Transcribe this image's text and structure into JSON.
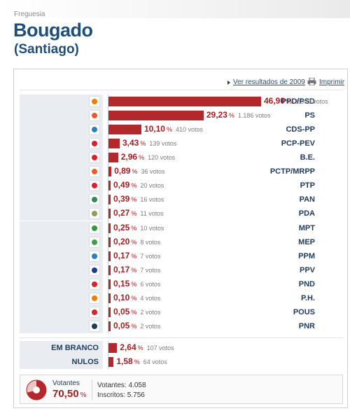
{
  "header": {
    "freguesia_label": "Freguesia",
    "title": "Bougado",
    "subtitle": "(Santiago)"
  },
  "toolbar": {
    "results_link": "Ver resultados de 2009",
    "print_link": "Imprimir"
  },
  "colors": {
    "bar": "#b3282d",
    "percent": "#a41e22",
    "label": "#1f3a5c",
    "title": "#1f4e79"
  },
  "parties": [
    {
      "name": "PPD/PSD",
      "pct": "46,90",
      "pct_value": 46.9,
      "votes": "1.903 votos",
      "logo_color": "#f07d00",
      "icon": "psd-logo-icon"
    },
    {
      "name": "PS",
      "pct": "29,23",
      "pct_value": 29.23,
      "votes": "1.186 votos",
      "logo_color": "#e85b2a",
      "icon": "ps-logo-icon"
    },
    {
      "name": "CDS-PP",
      "pct": "10,10",
      "pct_value": 10.1,
      "votes": "410 votos",
      "logo_color": "#2a7fc1",
      "icon": "cds-logo-icon"
    },
    {
      "name": "PCP-PEV",
      "pct": "3,43",
      "pct_value": 3.43,
      "votes": "139 votos",
      "logo_color": "#d8232a",
      "icon": "pcp-pev-logo-icon"
    },
    {
      "name": "B.E.",
      "pct": "2,96",
      "pct_value": 2.96,
      "votes": "120 votos",
      "logo_color": "#d8232a",
      "icon": "be-logo-icon"
    },
    {
      "name": "PCTP/MRPP",
      "pct": "0,89",
      "pct_value": 0.89,
      "votes": "36 votos",
      "logo_color": "#e85b2a",
      "icon": "pctp-logo-icon"
    },
    {
      "name": "PTP",
      "pct": "0,49",
      "pct_value": 0.49,
      "votes": "20 votos",
      "logo_color": "#d8232a",
      "icon": "ptp-logo-icon"
    },
    {
      "name": "PAN",
      "pct": "0,39",
      "pct_value": 0.39,
      "votes": "16 votos",
      "logo_color": "#2e8b57",
      "icon": "pan-logo-icon"
    },
    {
      "name": "PDA",
      "pct": "0,27",
      "pct_value": 0.27,
      "votes": "11 votos",
      "logo_color": "#8aa05a",
      "icon": "pda-logo-icon"
    },
    {
      "name": "MPT",
      "pct": "0,25",
      "pct_value": 0.25,
      "votes": "10 votos",
      "logo_color": "#2e9b3b",
      "icon": "mpt-logo-icon"
    },
    {
      "name": "MEP",
      "pct": "0,20",
      "pct_value": 0.2,
      "votes": "8 votos",
      "logo_color": "#3aa14a",
      "icon": "mep-logo-icon"
    },
    {
      "name": "PPM",
      "pct": "0,17",
      "pct_value": 0.17,
      "votes": "7 votos",
      "logo_color": "#2a7fc1",
      "icon": "ppm-logo-icon"
    },
    {
      "name": "PPV",
      "pct": "0,17",
      "pct_value": 0.17,
      "votes": "7 votos",
      "logo_color": "#1f3a8c",
      "icon": "ppv-logo-icon"
    },
    {
      "name": "PND",
      "pct": "0,15",
      "pct_value": 0.15,
      "votes": "6 votos",
      "logo_color": "#d8232a",
      "icon": "pnd-logo-icon"
    },
    {
      "name": "P.H.",
      "pct": "0,10",
      "pct_value": 0.1,
      "votes": "4 votos",
      "logo_color": "#f07d00",
      "icon": "ph-logo-icon"
    },
    {
      "name": "POUS",
      "pct": "0,05",
      "pct_value": 0.05,
      "votes": "2 votos",
      "logo_color": "#d8232a",
      "icon": "pous-logo-icon"
    },
    {
      "name": "PNR",
      "pct": "0,05",
      "pct_value": 0.05,
      "votes": "2 votos",
      "logo_color": "#1f3a5c",
      "icon": "pnr-logo-icon"
    }
  ],
  "others": [
    {
      "name": "EM BRANCO",
      "pct": "2,64",
      "pct_value": 2.64,
      "votes": "107 votos"
    },
    {
      "name": "NULOS",
      "pct": "1,58",
      "pct_value": 1.58,
      "votes": "64 votos"
    }
  ],
  "summary": {
    "votantes_label": "Votantes",
    "votantes_pct": "70,50",
    "votantes_pct_value": 70.5,
    "votantes_count_label": "Votantes:",
    "votantes_count": "4.058",
    "inscritos_label": "Inscritos:",
    "inscritos_count": "5.756"
  },
  "percent_sign": "%"
}
